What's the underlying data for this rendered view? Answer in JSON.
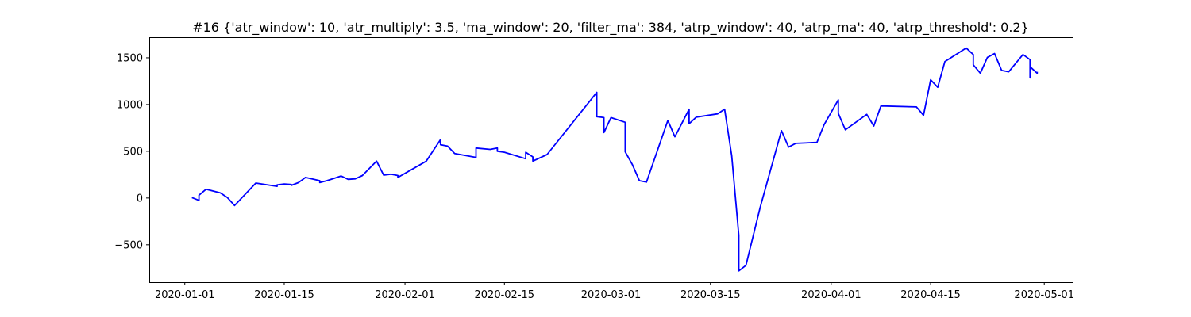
{
  "chart_data": {
    "type": "line",
    "title": "#16 {'atr_window': 10, 'atr_multiply': 3.5, 'ma_window': 20, 'filter_ma': 384, 'atrp_window': 40, 'atrp_ma': 40, 'atrp_threshold': 0.2}",
    "xlabel": "",
    "ylabel": "",
    "x_axis": "date",
    "xlim": [
      "2019-12-27",
      "2020-05-05"
    ],
    "ylim": [
      -900,
      1720
    ],
    "grid": false,
    "legend": "none",
    "line_color": "#0000ff",
    "x_ticks": [
      "2020-01-01",
      "2020-01-15",
      "2020-02-01",
      "2020-02-15",
      "2020-03-01",
      "2020-03-15",
      "2020-04-01",
      "2020-04-15",
      "2020-05-01"
    ],
    "y_ticks": [
      -500,
      0,
      500,
      1000,
      1500
    ],
    "series": [
      {
        "x": [
          "2020-01-02",
          "2020-01-03",
          "2020-01-03",
          "2020-01-04",
          "2020-01-06",
          "2020-01-07",
          "2020-01-08",
          "2020-01-11",
          "2020-01-14",
          "2020-01-14",
          "2020-01-15",
          "2020-01-16",
          "2020-01-16",
          "2020-01-17",
          "2020-01-18",
          "2020-01-20",
          "2020-01-20",
          "2020-01-21",
          "2020-01-22",
          "2020-01-23",
          "2020-01-24",
          "2020-01-25",
          "2020-01-26",
          "2020-01-28",
          "2020-01-29",
          "2020-01-30",
          "2020-01-31",
          "2020-01-31",
          "2020-02-04",
          "2020-02-06",
          "2020-02-06",
          "2020-02-07",
          "2020-02-08",
          "2020-02-11",
          "2020-02-11",
          "2020-02-13",
          "2020-02-14",
          "2020-02-14",
          "2020-02-15",
          "2020-02-18",
          "2020-02-18",
          "2020-02-19",
          "2020-02-19",
          "2020-02-21",
          "2020-02-28",
          "2020-02-28",
          "2020-02-29",
          "2020-02-29",
          "2020-03-01",
          "2020-03-03",
          "2020-03-03",
          "2020-03-04",
          "2020-03-05",
          "2020-03-06",
          "2020-03-09",
          "2020-03-10",
          "2020-03-12",
          "2020-03-12",
          "2020-03-13",
          "2020-03-16",
          "2020-03-17",
          "2020-03-18",
          "2020-03-19",
          "2020-03-19",
          "2020-03-20",
          "2020-03-22",
          "2020-03-25",
          "2020-03-26",
          "2020-03-27",
          "2020-03-30",
          "2020-03-31",
          "2020-04-02",
          "2020-04-02",
          "2020-04-03",
          "2020-04-06",
          "2020-04-07",
          "2020-04-08",
          "2020-04-13",
          "2020-04-14",
          "2020-04-15",
          "2020-04-16",
          "2020-04-17",
          "2020-04-20",
          "2020-04-21",
          "2020-04-21",
          "2020-04-22",
          "2020-04-23",
          "2020-04-24",
          "2020-04-25",
          "2020-04-26",
          "2020-04-28",
          "2020-04-29",
          "2020-04-29",
          "2020-04-29",
          "2020-04-30",
          "2020-04-30"
        ],
        "y": [
          5,
          -25,
          30,
          95,
          55,
          5,
          -80,
          160,
          125,
          140,
          150,
          145,
          135,
          165,
          220,
          185,
          165,
          185,
          210,
          235,
          200,
          205,
          240,
          395,
          245,
          255,
          240,
          220,
          395,
          625,
          570,
          555,
          475,
          435,
          535,
          520,
          535,
          500,
          490,
          420,
          490,
          440,
          395,
          465,
          1130,
          870,
          860,
          700,
          860,
          810,
          495,
          360,
          185,
          170,
          830,
          655,
          950,
          795,
          865,
          900,
          950,
          450,
          -400,
          -780,
          -720,
          -100,
          720,
          545,
          585,
          595,
          785,
          1050,
          905,
          730,
          895,
          770,
          985,
          975,
          885,
          1265,
          1185,
          1460,
          1605,
          1535,
          1425,
          1335,
          1505,
          1545,
          1365,
          1350,
          1535,
          1480,
          1285,
          1405,
          1335,
          1350
        ]
      }
    ]
  }
}
